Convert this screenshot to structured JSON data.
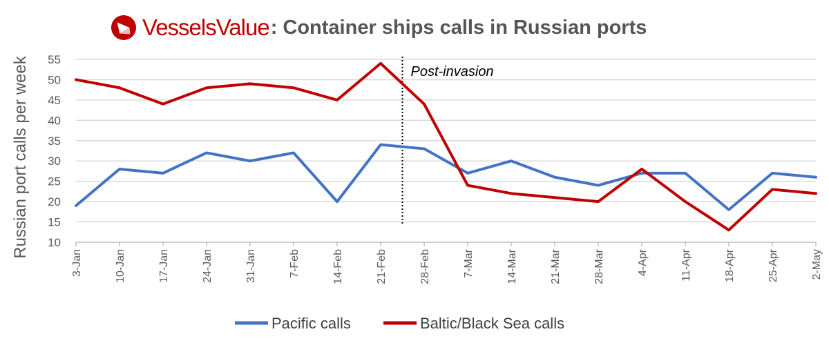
{
  "header": {
    "brand": "VesselsValue",
    "title": ": Container ships calls in Russian ports"
  },
  "colors": {
    "brand": "#c00000",
    "pacific": "#4472c4",
    "baltic": "#c00000",
    "grid": "#d9d9d9"
  },
  "chart_data": {
    "type": "line",
    "title": "Container ships calls in Russian ports",
    "ylabel": "Russian port calls per week",
    "xlabel": "",
    "ylim": [
      10,
      55
    ],
    "yticks": [
      10,
      15,
      20,
      25,
      30,
      35,
      40,
      45,
      50,
      55
    ],
    "grid": true,
    "legend_position": "bottom",
    "categories": [
      "3-Jan",
      "10-Jan",
      "17-Jan",
      "24-Jan",
      "31-Jan",
      "7-Feb",
      "14-Feb",
      "21-Feb",
      "28-Feb",
      "7-Mar",
      "14-Mar",
      "21-Mar",
      "28-Mar",
      "4-Apr",
      "11-Apr",
      "18-Apr",
      "25-Apr",
      "2-May"
    ],
    "series": [
      {
        "name": "Pacific calls",
        "color": "#4472c4",
        "values": [
          19,
          28,
          27,
          32,
          30,
          32,
          20,
          34,
          33,
          27,
          30,
          26,
          24,
          27,
          27,
          18,
          27,
          26
        ]
      },
      {
        "name": "Baltic/Black Sea calls",
        "color": "#c00000",
        "values": [
          50,
          48,
          44,
          48,
          49,
          48,
          45,
          54,
          44,
          24,
          22,
          21,
          20,
          28,
          20,
          13,
          23,
          22
        ]
      }
    ],
    "annotations": [
      {
        "text": "Post-invasion",
        "x_between": [
          "21-Feb",
          "28-Feb"
        ],
        "style": "dotted vertical line"
      }
    ]
  }
}
